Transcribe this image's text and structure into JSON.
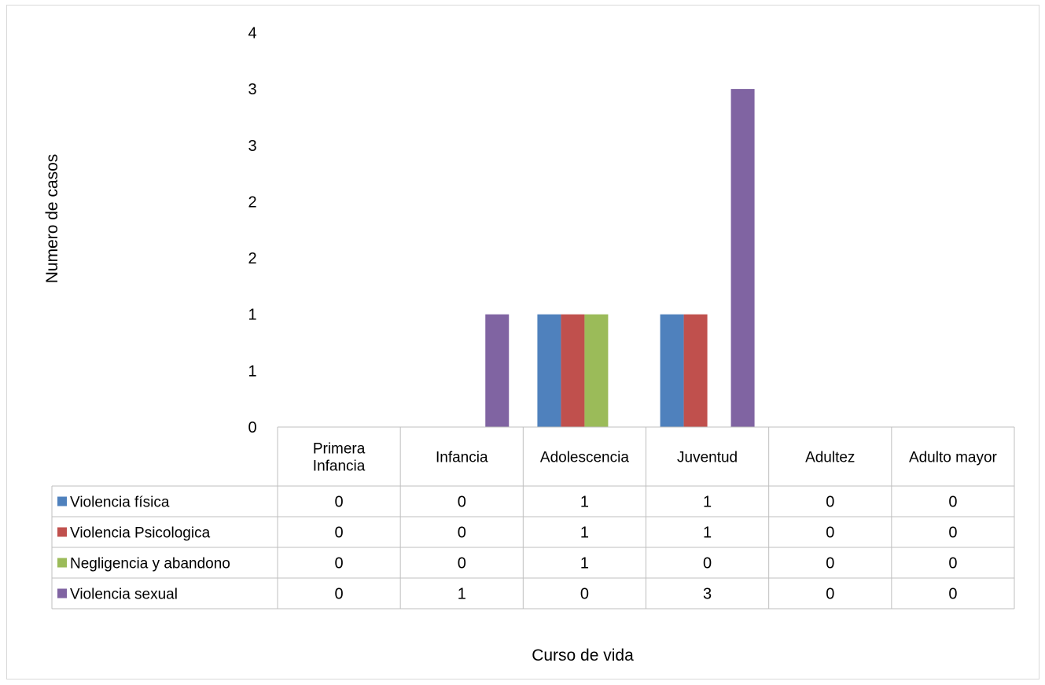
{
  "chart_data": {
    "type": "bar",
    "xlabel": "Curso de vida",
    "ylabel": "Numero de casos",
    "categories": [
      [
        "Primera",
        "Infancia"
      ],
      [
        "Infancia"
      ],
      [
        "Adolescencia"
      ],
      [
        "Juventud"
      ],
      [
        "Adultez"
      ],
      [
        "Adulto mayor"
      ]
    ],
    "yticks": [
      "0",
      "1",
      "1",
      "2",
      "2",
      "3",
      "3",
      "4"
    ],
    "ylim": [
      0,
      3.5
    ],
    "grid": false,
    "legend": "data-table",
    "series": [
      {
        "name": "Violencia física",
        "color": "#4F81BD",
        "values": [
          0,
          0,
          1,
          1,
          0,
          0
        ]
      },
      {
        "name": "Violencia Psicologica",
        "color": "#C0504D",
        "values": [
          0,
          0,
          1,
          1,
          0,
          0
        ]
      },
      {
        "name": "Negligencia y abandono",
        "color": "#9BBB59",
        "values": [
          0,
          0,
          1,
          0,
          0,
          0
        ]
      },
      {
        "name": "Violencia sexual",
        "color": "#8064A2",
        "values": [
          0,
          1,
          0,
          3,
          0,
          0
        ]
      }
    ]
  }
}
